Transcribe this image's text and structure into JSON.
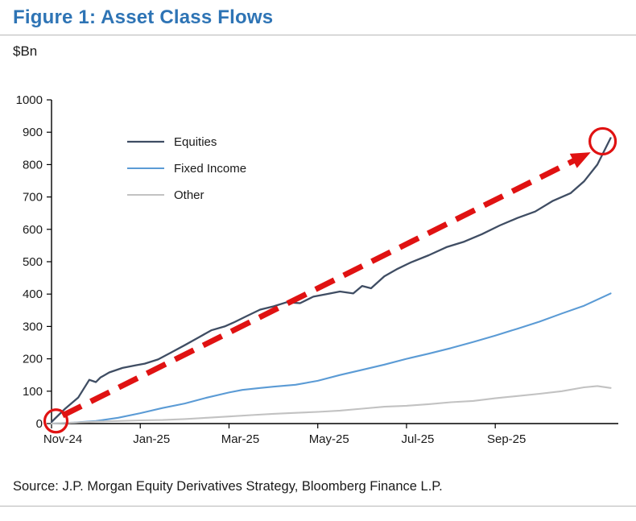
{
  "page": {
    "title": "Figure 1: Asset Class Flows",
    "title_color": "#2e74b5",
    "unit_label": "$Bn",
    "source": "Source: J.P. Morgan Equity Derivatives Strategy, Bloomberg Finance L.P."
  },
  "chart_data": {
    "type": "line",
    "title": "Figure 1: Asset Class Flows",
    "ylabel": "$Bn",
    "ylim": [
      0,
      1000
    ],
    "ytick_interval": 100,
    "grid": false,
    "legend_position": "top-left",
    "x_axis_unit": "months since Nov-24",
    "x_max_months": 12.7,
    "x_ticks": [
      {
        "label": "Nov-24",
        "month": 0
      },
      {
        "label": "Jan-25",
        "month": 2
      },
      {
        "label": "Mar-25",
        "month": 4
      },
      {
        "label": "May-25",
        "month": 6
      },
      {
        "label": "Jul-25",
        "month": 8
      },
      {
        "label": "Sep-25",
        "month": 10
      }
    ],
    "series": [
      {
        "name": "Equities",
        "color": "#3f4d63",
        "width": 2.3,
        "x": [
          0,
          0.3,
          0.6,
          0.85,
          1.0,
          1.1,
          1.3,
          1.6,
          1.9,
          2.1,
          2.4,
          2.7,
          3.0,
          3.3,
          3.6,
          3.9,
          4.1,
          4.4,
          4.7,
          5.0,
          5.3,
          5.6,
          5.9,
          6.2,
          6.5,
          6.8,
          7.0,
          7.2,
          7.5,
          7.8,
          8.1,
          8.5,
          8.9,
          9.3,
          9.7,
          10.1,
          10.5,
          10.9,
          11.3,
          11.7,
          12.0,
          12.3,
          12.6
        ],
        "y": [
          5,
          45,
          80,
          135,
          128,
          142,
          158,
          172,
          180,
          185,
          198,
          220,
          242,
          265,
          288,
          300,
          312,
          332,
          352,
          362,
          375,
          372,
          392,
          400,
          408,
          402,
          425,
          418,
          455,
          478,
          498,
          520,
          545,
          562,
          585,
          612,
          635,
          655,
          688,
          712,
          748,
          800,
          882
        ]
      },
      {
        "name": "Fixed Income",
        "color": "#5b9bd5",
        "width": 2.1,
        "x": [
          0,
          0.5,
          1.0,
          1.5,
          2.0,
          2.5,
          3.0,
          3.5,
          4.0,
          4.3,
          4.7,
          5.0,
          5.5,
          6.0,
          6.5,
          7.0,
          7.5,
          8.0,
          8.5,
          9.0,
          9.5,
          10.0,
          10.5,
          11.0,
          11.5,
          12.0,
          12.6
        ],
        "y": [
          0,
          3,
          8,
          18,
          32,
          48,
          62,
          80,
          96,
          104,
          110,
          114,
          120,
          132,
          150,
          166,
          182,
          200,
          216,
          233,
          252,
          272,
          293,
          315,
          340,
          364,
          402
        ]
      },
      {
        "name": "Other",
        "color": "#c2c2c2",
        "width": 2.1,
        "x": [
          0,
          0.5,
          1.0,
          1.5,
          2.0,
          2.5,
          3.0,
          3.5,
          4.0,
          4.5,
          5.0,
          5.5,
          6.0,
          6.5,
          7.0,
          7.5,
          8.0,
          8.5,
          9.0,
          9.5,
          10.0,
          10.5,
          11.0,
          11.5,
          12.0,
          12.3,
          12.6
        ],
        "y": [
          0,
          3,
          6,
          8,
          10,
          11,
          14,
          18,
          22,
          26,
          30,
          33,
          36,
          40,
          46,
          52,
          55,
          60,
          66,
          70,
          78,
          85,
          92,
          100,
          112,
          116,
          110
        ]
      }
    ],
    "annotation": {
      "type": "dashed-arrow-with-circles",
      "color": "#e01212",
      "arrow": {
        "from": {
          "month": 0.25,
          "value": 25
        },
        "to": {
          "month": 12.15,
          "value": 838
        }
      },
      "circles": [
        {
          "month": 0.1,
          "value": 8,
          "radius_px": 14
        },
        {
          "month": 12.42,
          "value": 872,
          "radius_px": 16
        }
      ]
    }
  }
}
